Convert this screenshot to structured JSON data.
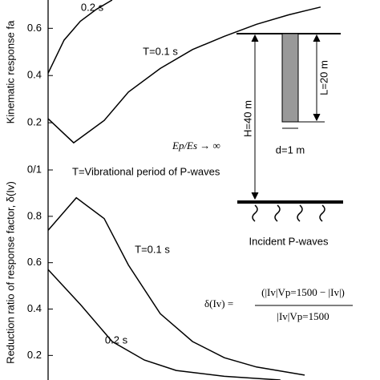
{
  "chart_data": [
    {
      "type": "line",
      "ylabel": "Kinematic response fa",
      "xlim": [
        0,
        1
      ],
      "ylim": [
        0,
        0.72
      ],
      "yticks": [
        {
          "value": 0,
          "label": "0/1"
        },
        0.2,
        0.4,
        0.6
      ],
      "series": [
        {
          "name": "0.2 s",
          "color": "#000000",
          "x": [
            0,
            0.048,
            0.097,
            0.145,
            0.193
          ],
          "values": [
            0.41,
            0.55,
            0.63,
            0.68,
            0.72
          ]
        },
        {
          "name": "T=0.1 s",
          "color": "#000000",
          "x": [
            0,
            0.077,
            0.169,
            0.242,
            0.338,
            0.435,
            0.531,
            0.628,
            0.725,
            0.821
          ],
          "values": [
            0.217,
            0.115,
            0.21,
            0.33,
            0.43,
            0.51,
            0.566,
            0.617,
            0.657,
            0.69
          ]
        }
      ]
    },
    {
      "type": "line",
      "ylabel": "Reduction ratio of response factor, δ(Iv)",
      "xlim": [
        0,
        1
      ],
      "ylim": [
        0.094,
        1
      ],
      "yticks": [
        0.2,
        0.4,
        0.6,
        0.8
      ],
      "series": [
        {
          "name": "T=0.1 s",
          "color": "#000000",
          "x": [
            0,
            0.085,
            0.169,
            0.242,
            0.338,
            0.435,
            0.531,
            0.628,
            0.773
          ],
          "values": [
            0.74,
            0.88,
            0.79,
            0.59,
            0.38,
            0.26,
            0.19,
            0.15,
            0.115
          ]
        },
        {
          "name": "0.2 s",
          "color": "#000000",
          "x": [
            0,
            0.097,
            0.193,
            0.29,
            0.386,
            0.531,
            0.7
          ],
          "values": [
            0.57,
            0.42,
            0.26,
            0.18,
            0.135,
            0.11,
            0.094
          ]
        }
      ]
    }
  ],
  "annotations": {
    "modulus": "Ep/Es → ∞",
    "period": "T=Vibrational period of P-waves"
  },
  "diagram": {
    "length": "L=20 m",
    "height": "H=40 m",
    "diameter": "d=1 m",
    "waves": "Incident P-waves"
  },
  "formula": {
    "lhs": "δ(Iv) =",
    "numerator": "(|Iv|Vp=1500 − |Iv|)",
    "denominator": "|Iv|Vp=1500"
  }
}
